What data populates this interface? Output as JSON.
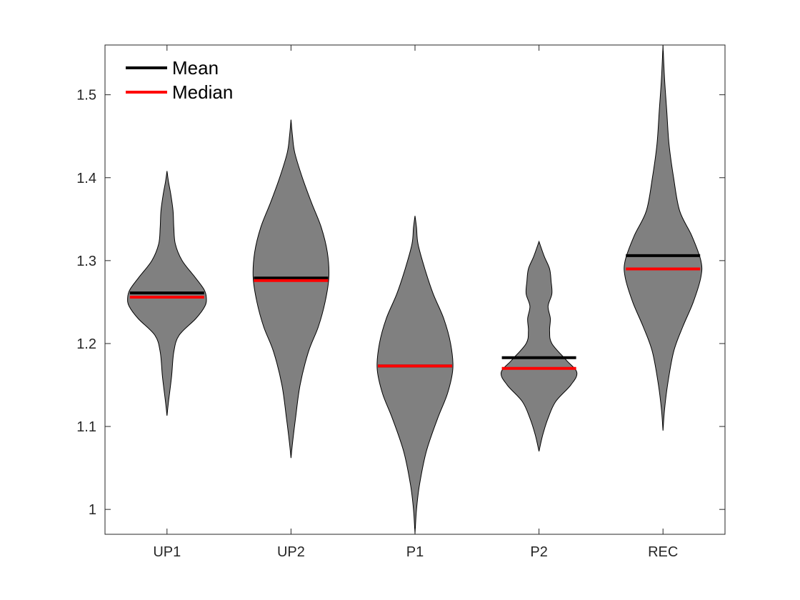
{
  "chart_data": {
    "type": "violin",
    "title": "",
    "xlabel": "",
    "ylabel": "",
    "categories": [
      "UP1",
      "UP2",
      "P1",
      "P2",
      "REC"
    ],
    "ylim": [
      0.97,
      1.56
    ],
    "yticks": [
      1,
      1.1,
      1.2,
      1.3,
      1.4,
      1.5
    ],
    "ytick_labels": [
      "1",
      "1.1",
      "1.2",
      "1.3",
      "1.4",
      "1.5"
    ],
    "grid": false,
    "legend": {
      "placement": "top-left",
      "entries": [
        {
          "label": "Mean",
          "color": "#000000"
        },
        {
          "label": "Median",
          "color": "#ff0000"
        }
      ]
    },
    "violin_color": "#808080",
    "mean_color": "#000000",
    "median_color": "#ff0000",
    "violins": [
      {
        "category": "UP1",
        "mean": 1.261,
        "median": 1.256,
        "min": 1.113,
        "max": 1.408,
        "profile": [
          [
            1.113,
            0.0
          ],
          [
            1.13,
            0.02
          ],
          [
            1.16,
            0.06
          ],
          [
            1.19,
            0.09
          ],
          [
            1.21,
            0.16
          ],
          [
            1.23,
            0.38
          ],
          [
            1.245,
            0.5
          ],
          [
            1.255,
            0.52
          ],
          [
            1.265,
            0.49
          ],
          [
            1.28,
            0.37
          ],
          [
            1.3,
            0.2
          ],
          [
            1.32,
            0.11
          ],
          [
            1.34,
            0.09
          ],
          [
            1.36,
            0.08
          ],
          [
            1.38,
            0.05
          ],
          [
            1.395,
            0.02
          ],
          [
            1.408,
            0.0
          ]
        ]
      },
      {
        "category": "UP2",
        "mean": 1.279,
        "median": 1.276,
        "min": 1.062,
        "max": 1.47,
        "profile": [
          [
            1.062,
            0.0
          ],
          [
            1.08,
            0.02
          ],
          [
            1.11,
            0.06
          ],
          [
            1.15,
            0.12
          ],
          [
            1.19,
            0.23
          ],
          [
            1.22,
            0.36
          ],
          [
            1.25,
            0.45
          ],
          [
            1.28,
            0.5
          ],
          [
            1.31,
            0.48
          ],
          [
            1.34,
            0.4
          ],
          [
            1.37,
            0.27
          ],
          [
            1.4,
            0.15
          ],
          [
            1.43,
            0.05
          ],
          [
            1.45,
            0.02
          ],
          [
            1.47,
            0.0
          ]
        ]
      },
      {
        "category": "P1",
        "mean": 1.173,
        "median": 1.173,
        "min": 0.97,
        "max": 1.354,
        "profile": [
          [
            0.97,
            0.0
          ],
          [
            1.0,
            0.02
          ],
          [
            1.03,
            0.06
          ],
          [
            1.07,
            0.15
          ],
          [
            1.11,
            0.3
          ],
          [
            1.14,
            0.43
          ],
          [
            1.17,
            0.5
          ],
          [
            1.2,
            0.47
          ],
          [
            1.23,
            0.38
          ],
          [
            1.26,
            0.24
          ],
          [
            1.29,
            0.13
          ],
          [
            1.32,
            0.04
          ],
          [
            1.34,
            0.02
          ],
          [
            1.354,
            0.0
          ]
        ]
      },
      {
        "category": "P2",
        "mean": 1.183,
        "median": 1.17,
        "min": 1.07,
        "max": 1.323,
        "profile": [
          [
            1.07,
            0.0
          ],
          [
            1.09,
            0.05
          ],
          [
            1.11,
            0.12
          ],
          [
            1.13,
            0.22
          ],
          [
            1.15,
            0.42
          ],
          [
            1.165,
            0.5
          ],
          [
            1.18,
            0.36
          ],
          [
            1.2,
            0.17
          ],
          [
            1.215,
            0.14
          ],
          [
            1.23,
            0.15
          ],
          [
            1.245,
            0.12
          ],
          [
            1.26,
            0.17
          ],
          [
            1.275,
            0.16
          ],
          [
            1.29,
            0.14
          ],
          [
            1.305,
            0.07
          ],
          [
            1.323,
            0.0
          ]
        ]
      },
      {
        "category": "REC",
        "mean": 1.306,
        "median": 1.29,
        "min": 1.095,
        "max": 1.56,
        "profile": [
          [
            1.095,
            0.0
          ],
          [
            1.12,
            0.02
          ],
          [
            1.15,
            0.06
          ],
          [
            1.19,
            0.14
          ],
          [
            1.22,
            0.26
          ],
          [
            1.25,
            0.4
          ],
          [
            1.28,
            0.5
          ],
          [
            1.3,
            0.5
          ],
          [
            1.33,
            0.38
          ],
          [
            1.36,
            0.22
          ],
          [
            1.4,
            0.14
          ],
          [
            1.44,
            0.08
          ],
          [
            1.48,
            0.05
          ],
          [
            1.52,
            0.02
          ],
          [
            1.56,
            0.0
          ]
        ]
      }
    ]
  }
}
